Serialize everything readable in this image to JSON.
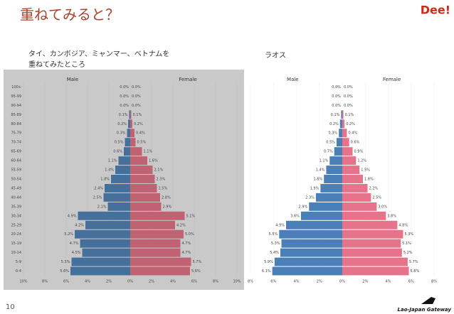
{
  "slide": {
    "title": "重ねてみると？",
    "logo": "Dee!",
    "page_number": "10",
    "footer": "Lao-Japan Gateway",
    "left_caption": [
      "タイ、カンボジア、ミャンマー、ベトナムを",
      "重ねてみたところ"
    ],
    "right_caption": "ラオス"
  },
  "chart_data": [
    {
      "type": "pyramid",
      "background": "#c9c9c9",
      "categories": [
        "100+",
        "95-99",
        "90-94",
        "85-89",
        "80-84",
        "75-79",
        "70-74",
        "65-69",
        "60-64",
        "55-59",
        "50-54",
        "45-49",
        "40-44",
        "35-39",
        "30-34",
        "25-29",
        "20-24",
        "15-19",
        "10-14",
        "5-9",
        "0-4"
      ],
      "series": [
        {
          "name": "Male",
          "color": "#46709c",
          "values": [
            0.0,
            0.0,
            0.0,
            0.1,
            0.2,
            0.3,
            0.5,
            0.6,
            1.1,
            1.4,
            1.8,
            2.4,
            2.5,
            2.1,
            4.9,
            4.2,
            5.2,
            4.7,
            4.5,
            5.5,
            5.6
          ],
          "value_labels": [
            "0.0%",
            "0.0%",
            "0.0%",
            "0.1%",
            "0.2%",
            "0.3%",
            "0.5%",
            "0.6%",
            "1.1%",
            "1.4%",
            "1.8%",
            "2.4%",
            "2.5%",
            "2.1%",
            "4.9%",
            "4.2%",
            "5.2%",
            "4.7%",
            "4.5%",
            "5.5%",
            "5.6%"
          ]
        },
        {
          "name": "Female",
          "color": "#bf6272",
          "values": [
            0.0,
            0.0,
            0.0,
            0.1,
            0.2,
            0.4,
            0.5,
            1.1,
            1.6,
            2.1,
            2.3,
            2.5,
            2.8,
            2.9,
            5.1,
            4.2,
            5.0,
            4.7,
            4.7,
            5.7,
            5.6
          ],
          "value_labels": [
            "0.0%",
            "0.0%",
            "0.0%",
            "0.1%",
            "0.2%",
            "0.4%",
            "0.5%",
            "1.1%",
            "1.6%",
            "2.1%",
            "2.3%",
            "2.5%",
            "2.8%",
            "2.9%",
            "5.1%",
            "4.2%",
            "5.0%",
            "4.7%",
            "4.7%",
            "5.7%",
            "5.6%"
          ]
        }
      ],
      "xlim": [
        -10,
        10
      ],
      "xticks": [
        {
          "value": -10,
          "label": "10%"
        },
        {
          "value": -8,
          "label": "8%"
        },
        {
          "value": -6,
          "label": "6%"
        },
        {
          "value": -4,
          "label": "4%"
        },
        {
          "value": -2,
          "label": "2%"
        },
        {
          "value": 0,
          "label": "0%"
        },
        {
          "value": 2,
          "label": "2%"
        },
        {
          "value": 4,
          "label": "4%"
        },
        {
          "value": 6,
          "label": "6%"
        },
        {
          "value": 8,
          "label": "8%"
        },
        {
          "value": 10,
          "label": "10%"
        }
      ]
    },
    {
      "type": "pyramid",
      "background": "#ffffff",
      "series": [
        {
          "name": "Male",
          "color": "#4a7fb8",
          "values": [
            0.0,
            0.0,
            0.0,
            0.1,
            0.2,
            0.3,
            0.5,
            0.7,
            1.1,
            1.4,
            1.6,
            1.9,
            2.3,
            2.9,
            3.6,
            4.9,
            5.5,
            5.3,
            5.4,
            5.9,
            6.1
          ],
          "value_labels": [
            "0.0%",
            "0.0%",
            "0.0%",
            "0.1%",
            "0.2%",
            "0.3%",
            "0.5%",
            "0.7%",
            "1.1%",
            "1.4%",
            "1.6%",
            "1.9%",
            "2.3%",
            "2.9%",
            "3.6%",
            "4.9%",
            "5.5%",
            "5.3%",
            "5.4%",
            "5.9%",
            "6.1%"
          ]
        },
        {
          "name": "Female",
          "color": "#e5738a",
          "values": [
            0.0,
            0.0,
            0.0,
            0.1,
            0.2,
            0.4,
            0.6,
            0.9,
            1.2,
            1.5,
            1.8,
            2.2,
            2.5,
            3.0,
            3.8,
            4.8,
            5.3,
            5.1,
            5.2,
            5.7,
            5.8
          ],
          "value_labels": [
            "0.0%",
            "0.0%",
            "0.0%",
            "0.1%",
            "0.2%",
            "0.4%",
            "0.6%",
            "0.9%",
            "1.2%",
            "1.5%",
            "1.8%",
            "2.2%",
            "2.5%",
            "3.0%",
            "3.8%",
            "4.8%",
            "5.3%",
            "5.1%",
            "5.2%",
            "5.7%",
            "5.8%"
          ]
        }
      ],
      "xlim": [
        -8,
        8
      ],
      "xticks": [
        {
          "value": -8,
          "label": "8%"
        },
        {
          "value": -6,
          "label": "6%"
        },
        {
          "value": -4,
          "label": "4%"
        },
        {
          "value": -2,
          "label": "2%"
        },
        {
          "value": 0,
          "label": "0%"
        },
        {
          "value": 2,
          "label": "2%"
        },
        {
          "value": 4,
          "label": "4%"
        },
        {
          "value": 6,
          "label": "6%"
        },
        {
          "value": 8,
          "label": "8%"
        }
      ]
    }
  ]
}
